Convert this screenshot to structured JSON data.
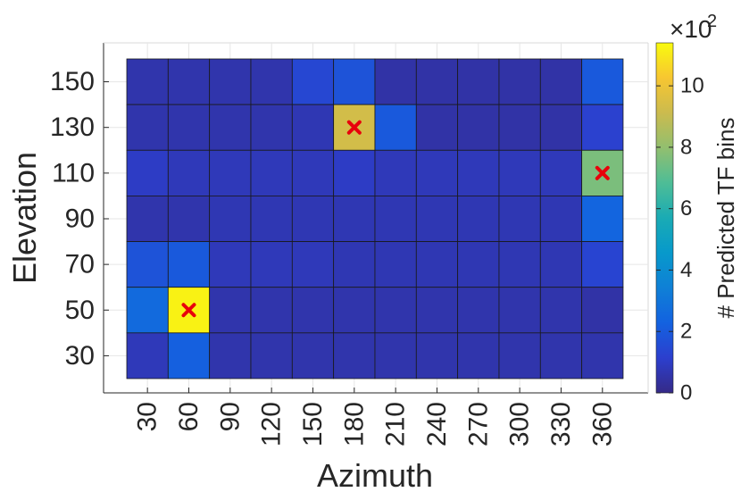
{
  "chart_data": {
    "type": "heatmap",
    "xlabel": "Azimuth",
    "ylabel": "Elevation",
    "x_ticks": [
      "30",
      "60",
      "90",
      "120",
      "150",
      "180",
      "210",
      "240",
      "270",
      "300",
      "330",
      "360"
    ],
    "y_ticks": [
      "150",
      "130",
      "110",
      "90",
      "70",
      "50",
      "30"
    ],
    "values": [
      [
        0.6,
        0.6,
        0.6,
        0.6,
        1.4,
        1.8,
        0.5,
        0.5,
        0.5,
        0.5,
        0.5,
        2.0
      ],
      [
        0.6,
        0.6,
        0.6,
        0.6,
        0.7,
        9.3,
        2.0,
        0.5,
        0.5,
        0.5,
        0.5,
        1.2
      ],
      [
        1.0,
        0.8,
        0.8,
        0.8,
        0.8,
        1.0,
        0.8,
        0.8,
        0.8,
        0.8,
        0.8,
        7.6
      ],
      [
        0.6,
        0.6,
        0.7,
        0.7,
        0.7,
        0.7,
        0.7,
        0.7,
        0.7,
        0.7,
        0.7,
        2.4
      ],
      [
        1.8,
        2.0,
        0.8,
        0.8,
        0.8,
        0.7,
        0.7,
        0.7,
        0.7,
        0.7,
        0.7,
        1.3
      ],
      [
        2.6,
        11.2,
        0.6,
        0.6,
        0.6,
        0.6,
        0.6,
        0.6,
        0.6,
        0.6,
        0.6,
        0.5
      ],
      [
        0.8,
        2.2,
        0.6,
        0.6,
        0.6,
        0.6,
        0.6,
        0.6,
        0.6,
        0.6,
        0.6,
        0.6
      ]
    ],
    "markers": [
      {
        "azimuth": "180",
        "elevation": "130",
        "symbol": "x"
      },
      {
        "azimuth": "360",
        "elevation": "110",
        "symbol": "x"
      },
      {
        "azimuth": "60",
        "elevation": "50",
        "symbol": "x"
      }
    ],
    "colorbar": {
      "label": "# Predicted TF bins",
      "multiplier": "×10",
      "multiplier_exponent": "2",
      "ticks": [
        "0",
        "2",
        "4",
        "6",
        "8",
        "10"
      ],
      "range": [
        0,
        11.4
      ],
      "colormap": "parula"
    },
    "marker_color": "#e8000b",
    "grid": true
  }
}
